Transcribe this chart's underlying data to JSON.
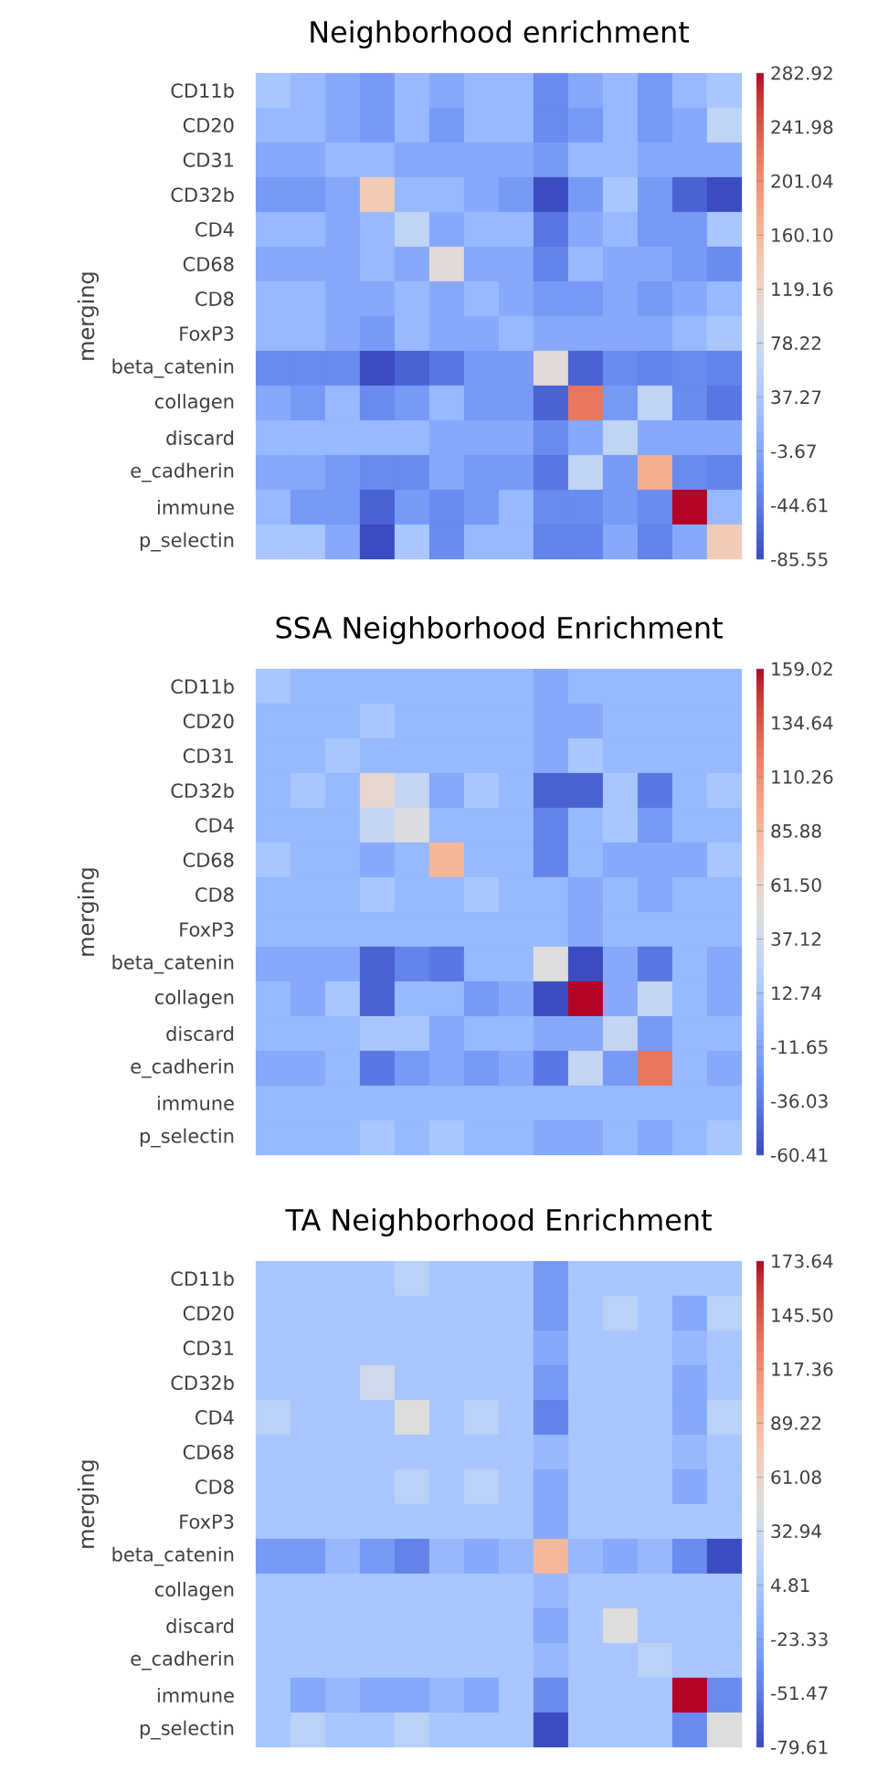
{
  "chart_data": [
    {
      "type": "heatmap",
      "title": "Neighborhood enrichment",
      "ylabel": "merging",
      "categories": [
        null,
        null,
        null,
        null,
        null,
        null,
        null,
        null,
        null,
        null,
        null,
        null,
        null,
        null
      ],
      "y_categories": [
        "CD11b",
        "CD20",
        "CD31",
        "CD32b",
        "CD4",
        "CD68",
        "CD8",
        "FoxP3",
        "beta_catenin",
        "collagen",
        "discard",
        "e_cadherin",
        "immune",
        "p_selectin"
      ],
      "cells": [
        [
          36,
          18,
          -1,
          -16,
          18,
          -1,
          18,
          18,
          -30,
          -1,
          18,
          -16,
          18,
          36
        ],
        [
          18,
          18,
          -1,
          -16,
          18,
          -16,
          18,
          18,
          -30,
          -16,
          18,
          -16,
          -1,
          62
        ],
        [
          -1,
          -1,
          18,
          18,
          -1,
          -1,
          -1,
          -1,
          -16,
          18,
          18,
          -1,
          -1,
          -1
        ],
        [
          -16,
          -16,
          -1,
          135,
          18,
          18,
          -1,
          -16,
          -85.55,
          -16,
          36,
          -16,
          -67,
          -85.55
        ],
        [
          18,
          18,
          -1,
          18,
          62,
          -1,
          18,
          18,
          -49,
          -1,
          18,
          -16,
          -16,
          36
        ],
        [
          -1,
          -1,
          -1,
          18,
          -1,
          105,
          -1,
          -1,
          -38,
          18,
          -1,
          -1,
          -16,
          -30
        ],
        [
          18,
          18,
          -1,
          -1,
          18,
          -1,
          18,
          -1,
          -16,
          -16,
          -1,
          -16,
          -1,
          18
        ],
        [
          18,
          18,
          -1,
          -16,
          18,
          -1,
          -1,
          18,
          -1,
          -1,
          -1,
          -1,
          18,
          36
        ],
        [
          -30,
          -30,
          -30,
          -85.55,
          -67,
          -49,
          -16,
          -16,
          105,
          -67,
          -30,
          -38,
          -30,
          -38
        ],
        [
          -1,
          -16,
          18,
          -30,
          -16,
          18,
          -16,
          -16,
          -67,
          220,
          -16,
          62,
          -30,
          -49
        ],
        [
          18,
          18,
          18,
          18,
          18,
          -1,
          -1,
          -1,
          -30,
          -1,
          62,
          -1,
          -1,
          -1
        ],
        [
          -1,
          -1,
          -16,
          -30,
          -30,
          -1,
          -16,
          -16,
          -49,
          62,
          -16,
          172,
          -30,
          -38
        ],
        [
          18,
          -16,
          -16,
          -67,
          -16,
          -30,
          -16,
          18,
          -30,
          -30,
          -16,
          -30,
          282.92,
          18
        ],
        [
          36,
          36,
          -1,
          -85.55,
          36,
          -30,
          18,
          18,
          -38,
          -38,
          -1,
          -38,
          -1,
          135
        ]
      ],
      "clim": [
        -85.55,
        282.92
      ],
      "cticks": [
        -85.55,
        -44.61,
        -3.67,
        37.27,
        78.22,
        119.16,
        {
          "value": 160.1,
          "label": "160.10"
        },
        201.04,
        241.98,
        282.92
      ]
    },
    {
      "type": "heatmap",
      "title": "SSA Neighborhood Enrichment",
      "ylabel": "merging",
      "categories": [
        null,
        null,
        null,
        null,
        null,
        null,
        null,
        null,
        null,
        null,
        null,
        null,
        null,
        null
      ],
      "y_categories": [
        "CD11b",
        "CD20",
        "CD31",
        "CD32b",
        "CD4",
        "CD68",
        "CD8",
        "FoxP3",
        "beta_catenin",
        "collagen",
        "discard",
        "e_cadherin",
        "immune",
        "p_selectin"
      ],
      "cells": [
        [
          12,
          1,
          1,
          1,
          1,
          1,
          1,
          1,
          -10,
          1,
          1,
          1,
          1,
          1
        ],
        [
          1,
          1,
          1,
          12,
          1,
          1,
          1,
          1,
          -10,
          -10,
          1,
          1,
          1,
          1
        ],
        [
          1,
          1,
          12,
          1,
          1,
          1,
          1,
          1,
          -10,
          12,
          1,
          1,
          1,
          1
        ],
        [
          1,
          12,
          1,
          58,
          30,
          -10,
          12,
          1,
          -49,
          -49,
          12,
          -38,
          1,
          12
        ],
        [
          1,
          1,
          1,
          30,
          47,
          1,
          1,
          1,
          -32,
          1,
          12,
          -19,
          1,
          1
        ],
        [
          12,
          1,
          1,
          -10,
          1,
          87,
          1,
          1,
          -32,
          1,
          -10,
          -10,
          -10,
          12
        ],
        [
          1,
          1,
          1,
          12,
          1,
          1,
          12,
          1,
          1,
          -10,
          1,
          -10,
          1,
          1
        ],
        [
          1,
          1,
          1,
          1,
          1,
          1,
          1,
          1,
          1,
          -10,
          1,
          1,
          1,
          1
        ],
        [
          -10,
          -10,
          -10,
          -49,
          -32,
          -38,
          1,
          1,
          50,
          -60.41,
          -10,
          -38,
          1,
          -10
        ],
        [
          1,
          -10,
          12,
          -49,
          1,
          1,
          -19,
          -10,
          -60.41,
          159.02,
          -10,
          30,
          1,
          -10
        ],
        [
          1,
          1,
          1,
          12,
          12,
          -10,
          1,
          1,
          -10,
          -10,
          30,
          -19,
          1,
          1
        ],
        [
          -10,
          -10,
          1,
          -38,
          -19,
          -10,
          -19,
          -10,
          -38,
          30,
          -19,
          122,
          1,
          -10
        ],
        [
          1,
          1,
          1,
          1,
          1,
          1,
          1,
          1,
          1,
          1,
          1,
          1,
          1,
          1
        ],
        [
          1,
          1,
          1,
          12,
          1,
          12,
          1,
          1,
          -10,
          -10,
          1,
          -10,
          1,
          12
        ]
      ],
      "clim": [
        -60.41,
        159.02
      ],
      "cticks": [
        -60.41,
        -36.03,
        -11.65,
        12.74,
        37.12,
        {
          "value": 61.5,
          "label": "61.50"
        },
        85.88,
        110.26,
        134.64,
        159.02
      ]
    },
    {
      "type": "heatmap",
      "title": "TA Neighborhood Enrichment",
      "ylabel": "merging",
      "categories": [
        null,
        null,
        null,
        null,
        null,
        null,
        null,
        null,
        null,
        null,
        null,
        null,
        null,
        null
      ],
      "y_categories": [
        "CD11b",
        "CD20",
        "CD31",
        "CD32b",
        "CD4",
        "CD68",
        "CD8",
        "FoxP3",
        "beta_catenin",
        "collagen",
        "discard",
        "e_cadherin",
        "immune",
        "p_selectin"
      ],
      "cells": [
        [
          4,
          4,
          4,
          4,
          17,
          4,
          4,
          4,
          -32,
          4,
          4,
          4,
          4,
          4
        ],
        [
          4,
          4,
          4,
          4,
          4,
          4,
          4,
          4,
          -32,
          4,
          17,
          4,
          -21,
          17
        ],
        [
          4,
          4,
          4,
          4,
          4,
          4,
          4,
          4,
          -21,
          4,
          4,
          4,
          -9,
          4
        ],
        [
          4,
          4,
          4,
          35,
          4,
          4,
          4,
          4,
          -32,
          4,
          4,
          4,
          -21,
          4
        ],
        [
          17,
          4,
          4,
          4,
          47,
          4,
          17,
          4,
          -47,
          4,
          4,
          4,
          -21,
          17
        ],
        [
          4,
          4,
          4,
          4,
          4,
          4,
          4,
          4,
          -9,
          4,
          4,
          4,
          -9,
          4
        ],
        [
          4,
          4,
          4,
          4,
          17,
          4,
          17,
          4,
          -21,
          4,
          4,
          4,
          -21,
          4
        ],
        [
          4,
          4,
          4,
          4,
          4,
          4,
          4,
          4,
          -21,
          4,
          4,
          4,
          4,
          4
        ],
        [
          -32,
          -32,
          -9,
          -32,
          -47,
          -9,
          -21,
          -9,
          90,
          -9,
          -21,
          -9,
          -42,
          -79.61
        ],
        [
          4,
          4,
          4,
          4,
          4,
          4,
          4,
          4,
          -9,
          4,
          4,
          4,
          4,
          4
        ],
        [
          4,
          4,
          4,
          4,
          4,
          4,
          4,
          4,
          -21,
          4,
          47,
          4,
          4,
          4
        ],
        [
          4,
          4,
          4,
          4,
          4,
          4,
          4,
          4,
          -9,
          4,
          4,
          17,
          4,
          4
        ],
        [
          4,
          -21,
          -9,
          -21,
          -21,
          -9,
          -21,
          4,
          -42,
          4,
          4,
          4,
          173.64,
          -42
        ],
        [
          4,
          17,
          4,
          4,
          17,
          4,
          4,
          4,
          -79.61,
          4,
          4,
          4,
          -42,
          47
        ]
      ],
      "clim": [
        -79.61,
        173.64
      ],
      "cticks": [
        -79.61,
        -51.47,
        -23.33,
        4.81,
        32.94,
        61.08,
        89.22,
        117.36,
        {
          "value": 145.5,
          "label": "145.50"
        },
        173.64
      ]
    }
  ]
}
